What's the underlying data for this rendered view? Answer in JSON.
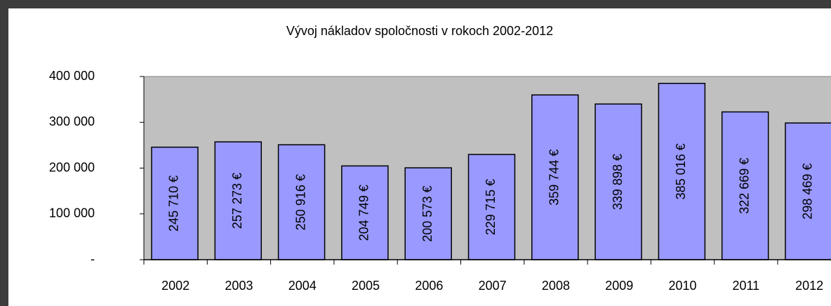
{
  "chart_data": {
    "type": "bar",
    "title": "Vývoj nákladov spoločnosti v rokoch 2002-2012",
    "categories": [
      "2002",
      "2003",
      "2004",
      "2005",
      "2006",
      "2007",
      "2008",
      "2009",
      "2010",
      "2011",
      "2012"
    ],
    "values": [
      245710,
      257273,
      250916,
      204749,
      200573,
      229715,
      359744,
      339898,
      385016,
      322669,
      298469
    ],
    "value_labels": [
      "245 710 €",
      "257 273 €",
      "250 916 €",
      "204 749 €",
      "200 573 €",
      "229 715 €",
      "359 744 €",
      "339 898 €",
      "385 016 €",
      "322 669 €",
      "298 469 €"
    ],
    "color": "#9999ff",
    "ylim": [
      0,
      400000
    ],
    "yticks": [
      {
        "value": 0,
        "label": "-"
      },
      {
        "value": 100000,
        "label": "100 000"
      },
      {
        "value": 200000,
        "label": "200 000"
      },
      {
        "value": 300000,
        "label": "300 000"
      },
      {
        "value": 400000,
        "label": "400 000"
      }
    ],
    "plot_background": "#c0c0c0"
  }
}
